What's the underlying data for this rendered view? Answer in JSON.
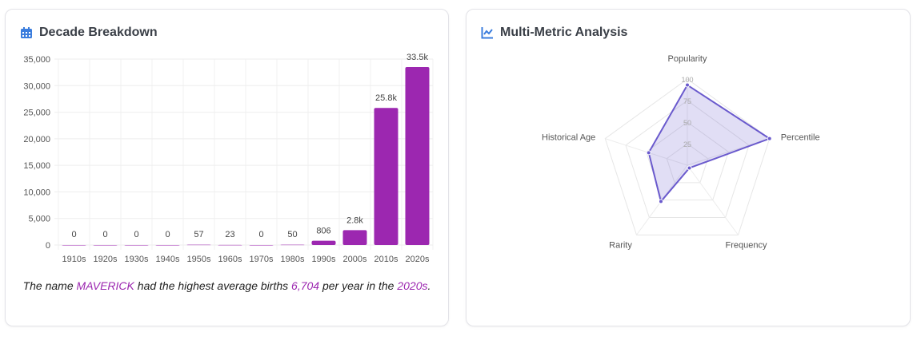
{
  "bar_card": {
    "title": "Decade Breakdown",
    "icon": "calendar-icon",
    "caption": {
      "p1": "The name ",
      "name": "MAVERICK",
      "p2": " had the highest average births ",
      "value": "6,704",
      "p3": " per year in the ",
      "decade": "2020s",
      "p4": "."
    }
  },
  "radar_card": {
    "title": "Multi-Metric Analysis",
    "icon": "line-chart-icon"
  },
  "colors": {
    "bar": "#9c27b0",
    "radar_line": "#6a5acd",
    "radar_fill": "rgba(106,90,205,0.2)",
    "icon": "#3b7ddd"
  },
  "chart_data": [
    {
      "type": "bar",
      "categories": [
        "1910s",
        "1920s",
        "1930s",
        "1940s",
        "1950s",
        "1960s",
        "1970s",
        "1980s",
        "1990s",
        "2000s",
        "2010s",
        "2020s"
      ],
      "values": [
        0,
        0,
        0,
        0,
        57,
        23,
        0,
        50,
        806,
        2800,
        25800,
        33500
      ],
      "data_labels": [
        "0",
        "0",
        "0",
        "0",
        "57",
        "23",
        "0",
        "50",
        "806",
        "2.8k",
        "25.8k",
        "33.5k"
      ],
      "ylim": [
        0,
        35000
      ],
      "yticks": [
        "0",
        "5,000",
        "10,000",
        "15,000",
        "20,000",
        "25,000",
        "30,000",
        "35,000"
      ],
      "grid": true
    },
    {
      "type": "radar",
      "axes": [
        "Popularity",
        "Percentile",
        "Frequency",
        "Rarity",
        "Historical Age"
      ],
      "values": [
        93,
        100,
        4,
        52,
        47
      ],
      "rlim": [
        0,
        100
      ],
      "rticks": [
        "25",
        "50",
        "75",
        "100"
      ]
    }
  ]
}
